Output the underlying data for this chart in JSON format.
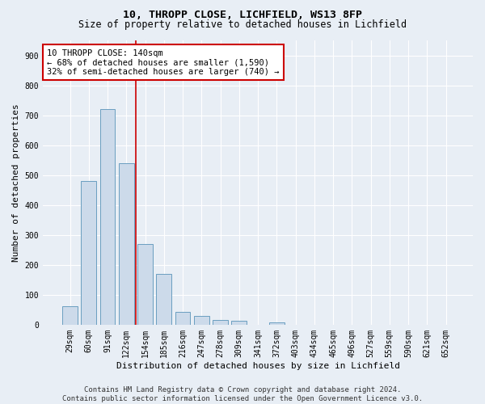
{
  "title1": "10, THROPP CLOSE, LICHFIELD, WS13 8FP",
  "title2": "Size of property relative to detached houses in Lichfield",
  "xlabel": "Distribution of detached houses by size in Lichfield",
  "ylabel": "Number of detached properties",
  "categories": [
    "29sqm",
    "60sqm",
    "91sqm",
    "122sqm",
    "154sqm",
    "185sqm",
    "216sqm",
    "247sqm",
    "278sqm",
    "309sqm",
    "341sqm",
    "372sqm",
    "403sqm",
    "434sqm",
    "465sqm",
    "496sqm",
    "527sqm",
    "559sqm",
    "590sqm",
    "621sqm",
    "652sqm"
  ],
  "values": [
    62,
    480,
    720,
    540,
    270,
    170,
    43,
    30,
    15,
    12,
    0,
    8,
    0,
    0,
    0,
    0,
    0,
    0,
    0,
    0,
    0
  ],
  "bar_color": "#ccdaea",
  "bar_edge_color": "#6a9ec0",
  "vline_x": 3.5,
  "vline_color": "#cc0000",
  "annotation_text": "10 THROPP CLOSE: 140sqm\n← 68% of detached houses are smaller (1,590)\n32% of semi-detached houses are larger (740) →",
  "annotation_box_color": "#ffffff",
  "annotation_box_edge": "#cc0000",
  "ylim": [
    0,
    950
  ],
  "yticks": [
    0,
    100,
    200,
    300,
    400,
    500,
    600,
    700,
    800,
    900
  ],
  "bg_color": "#e8eef5",
  "plot_bg_color": "#e8eef5",
  "footer": "Contains HM Land Registry data © Crown copyright and database right 2024.\nContains public sector information licensed under the Open Government Licence v3.0.",
  "title_fontsize": 9.5,
  "subtitle_fontsize": 8.5,
  "axis_label_fontsize": 8,
  "tick_fontsize": 7,
  "annotation_fontsize": 7.5,
  "footer_fontsize": 6.5
}
